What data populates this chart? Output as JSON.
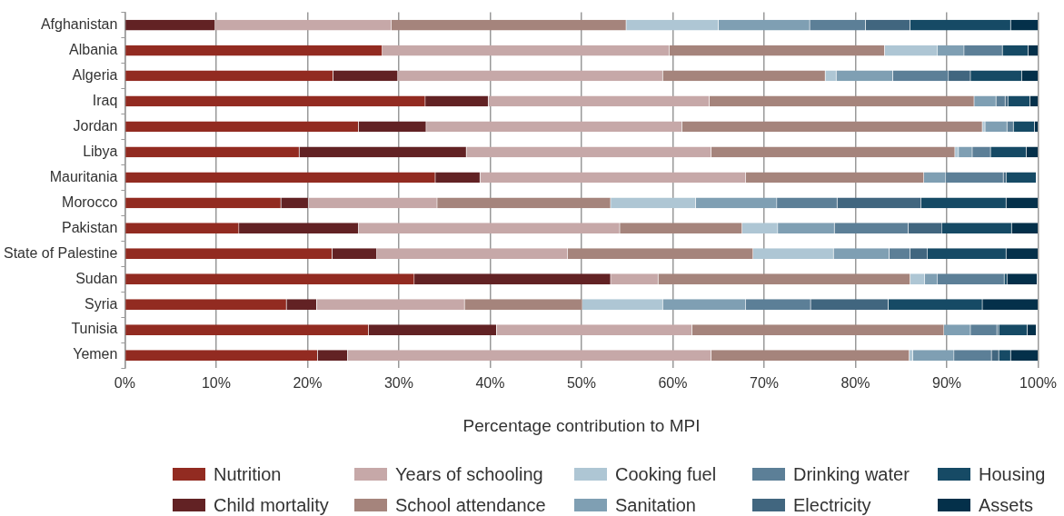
{
  "chart_data": {
    "type": "bar",
    "orientation": "horizontal",
    "stacked": true,
    "xlabel": "Percentage contribution to MPI",
    "grid": "x",
    "legend": "bottom",
    "categories": [
      "Afghanistan",
      "Albania",
      "Algeria",
      "Iraq",
      "Jordan",
      "Libya",
      "Mauritania",
      "Morocco",
      "Pakistan",
      "State of Palestine",
      "Sudan",
      "Syria",
      "Tunisia",
      "Yemen"
    ],
    "xlim": [
      0,
      100
    ],
    "xticks": [
      {
        "value": 0,
        "label": "0%"
      },
      {
        "value": 10,
        "label": "10%"
      },
      {
        "value": 20,
        "label": "20%"
      },
      {
        "value": 30,
        "label": "30%"
      },
      {
        "value": 40,
        "label": "40%"
      },
      {
        "value": 50,
        "label": "50%"
      },
      {
        "value": 60,
        "label": "60%"
      },
      {
        "value": 70,
        "label": "70%"
      },
      {
        "value": 80,
        "label": "80%"
      },
      {
        "value": 90,
        "label": "90%"
      },
      {
        "value": 100,
        "label": "100%"
      }
    ],
    "series": [
      {
        "name": "Nutrition",
        "color": "#922b21",
        "values": [
          0,
          28.2,
          22.8,
          32.9,
          25.6,
          19.1,
          34.0,
          17.1,
          12.5,
          22.7,
          31.7,
          17.7,
          26.7,
          21.1
        ]
      },
      {
        "name": "Child mortality",
        "color": "#622224",
        "values": [
          9.9,
          0,
          7.1,
          6.9,
          7.4,
          18.3,
          4.9,
          3.0,
          13.1,
          4.9,
          21.5,
          3.3,
          14.0,
          3.3
        ]
      },
      {
        "name": "Years of schooling",
        "color": "#c6a8a8",
        "values": [
          19.3,
          31.4,
          29.0,
          24.2,
          28.0,
          26.8,
          29.1,
          14.1,
          28.6,
          20.9,
          5.2,
          16.2,
          21.4,
          39.8
        ]
      },
      {
        "name": "School attendance",
        "color": "#a5847c",
        "values": [
          25.7,
          23.6,
          17.8,
          29.0,
          32.9,
          26.7,
          19.5,
          19.0,
          13.4,
          20.3,
          27.6,
          12.9,
          27.6,
          21.7
        ]
      },
      {
        "name": "Cooking fuel",
        "color": "#aec6d4",
        "values": [
          10.1,
          5.8,
          1.2,
          0,
          0.3,
          0.4,
          null,
          9.3,
          3.9,
          8.8,
          1.6,
          8.8,
          null,
          0.4
        ]
      },
      {
        "name": "Sanitation",
        "color": "#7f9fb3",
        "values": [
          10.0,
          2.9,
          6.2,
          2.4,
          2.4,
          1.5,
          2.4,
          8.9,
          6.2,
          6.1,
          1.4,
          9.1,
          2.9,
          4.5
        ]
      },
      {
        "name": "Drinking water",
        "color": "#5c7f97",
        "values": [
          6.1,
          4.2,
          6.1,
          1.0,
          0.7,
          2.0,
          6.3,
          6.6,
          8.1,
          2.3,
          7.3,
          7.1,
          2.9,
          4.1
        ]
      },
      {
        "name": "Electricity",
        "color": "#41667f",
        "values": [
          4.9,
          0,
          2.4,
          0.3,
          0,
          0,
          0.3,
          9.2,
          3.7,
          1.9,
          null,
          8.5,
          0.2,
          0.8
        ]
      },
      {
        "name": "Housing",
        "color": "#164a65",
        "values": [
          11.0,
          2.8,
          5.6,
          2.4,
          2.3,
          3.9,
          3.3,
          9.3,
          7.6,
          8.6,
          0.3,
          10.3,
          3.1,
          1.3
        ]
      },
      {
        "name": "Assets",
        "color": "#04304a",
        "values": [
          3.0,
          1.1,
          1.8,
          0.9,
          0.4,
          1.3,
          0,
          3.5,
          2.9,
          3.5,
          3.3,
          6.1,
          1.0,
          3.0
        ]
      }
    ]
  }
}
